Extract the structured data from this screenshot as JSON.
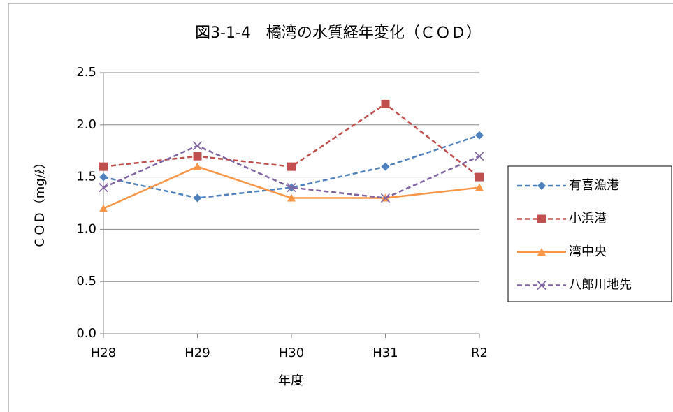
{
  "chart_data": {
    "type": "line",
    "title": "図3-1-4　橘湾の水質経年変化（ＣＯＤ）",
    "x_label": "年度",
    "y_label": "ＣＯＤ（mg/ℓ）",
    "categories": [
      "H28",
      "H29",
      "H30",
      "H31",
      "R2"
    ],
    "series": [
      {
        "name": "有喜漁港",
        "color": "#4f81bd",
        "dash": true,
        "marker": "diamond",
        "values": [
          1.5,
          1.3,
          1.4,
          1.6,
          1.9
        ]
      },
      {
        "name": "小浜港",
        "color": "#c0504d",
        "dash": true,
        "marker": "square",
        "values": [
          1.6,
          1.7,
          1.6,
          2.2,
          1.5
        ]
      },
      {
        "name": "湾中央",
        "color": "#f79646",
        "dash": false,
        "marker": "triangle",
        "values": [
          1.2,
          1.6,
          1.3,
          1.3,
          1.4
        ]
      },
      {
        "name": "八郎川地先",
        "color": "#8064a2",
        "dash": true,
        "marker": "x",
        "values": [
          1.4,
          1.8,
          1.4,
          1.3,
          1.7
        ]
      }
    ],
    "ylim": [
      0,
      2.5
    ],
    "yticks": [
      {
        "value": 0,
        "label": "0.0"
      },
      {
        "value": 0.5,
        "label": "0.5"
      },
      {
        "value": 1,
        "label": "1.0"
      },
      {
        "value": 1.5,
        "label": "1.5"
      },
      {
        "value": 2,
        "label": "2.0"
      },
      {
        "value": 2.5,
        "label": "2.5"
      }
    ],
    "grid": true,
    "legend": "right"
  }
}
